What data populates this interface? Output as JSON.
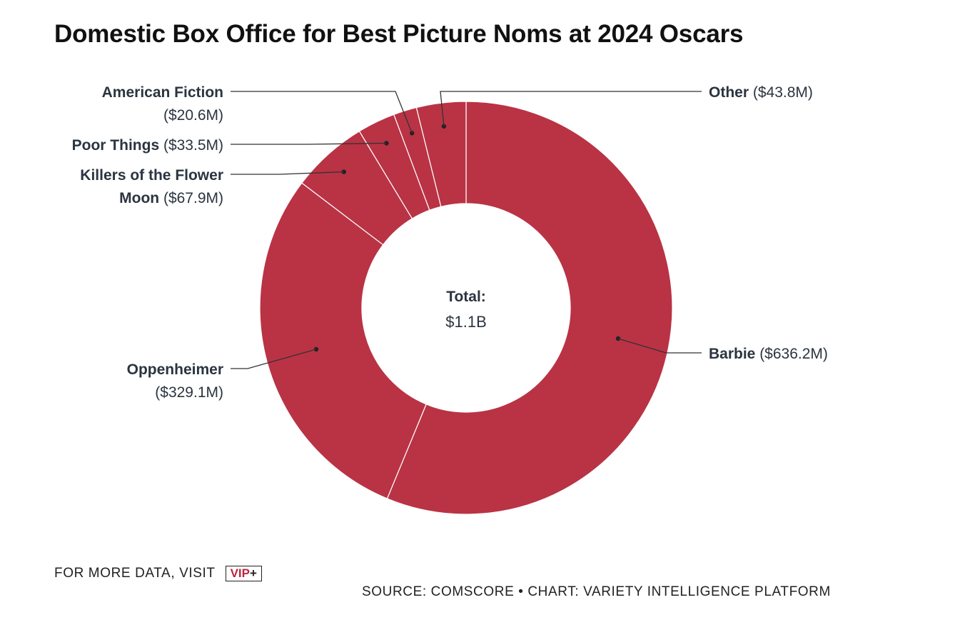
{
  "title": "Domestic Box Office for Best Picture Noms at 2024 Oscars",
  "chart_data": {
    "type": "pie",
    "variant": "donut",
    "color": "#b93345",
    "center": {
      "label": "Total:",
      "value": "$1.1B"
    },
    "slices": [
      {
        "name": "Barbie",
        "value": 636.2,
        "label": "($636.2M)"
      },
      {
        "name": "Oppenheimer",
        "value": 329.1,
        "label": "($329.1M)"
      },
      {
        "name": "Killers of the Flower Moon",
        "value": 67.9,
        "label": "($67.9M)"
      },
      {
        "name": "Poor Things",
        "value": 33.5,
        "label": "($33.5M)"
      },
      {
        "name": "American Fiction",
        "value": 20.6,
        "label": "($20.6M)"
      },
      {
        "name": "Other",
        "value": 43.8,
        "label": "($43.8M)"
      }
    ]
  },
  "footer": {
    "more_data": "FOR MORE DATA, VISIT",
    "vip": "VIP",
    "vip_plus": "+",
    "source": "SOURCE: COMSCORE • CHART: VARIETY INTELLIGENCE PLATFORM"
  }
}
